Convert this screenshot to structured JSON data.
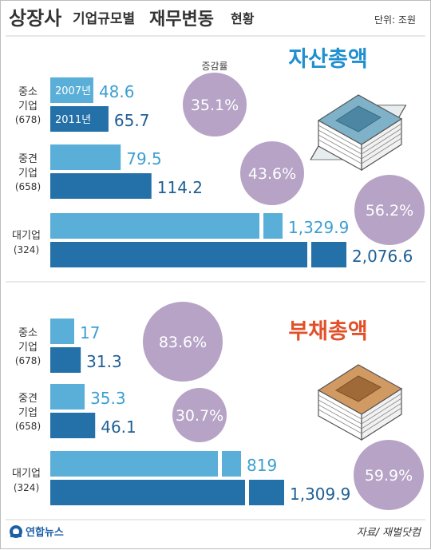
{
  "header": {
    "title_main": "상장사",
    "title_mid": "기업규모별",
    "title_end": "재무변동",
    "title_tail": "현황",
    "unit": "단위: 조원"
  },
  "legend": {
    "year1": "2007년",
    "year2": "2011년"
  },
  "growth_label": "증감률",
  "footer": {
    "logo": "연합뉴스",
    "source": "자료/ 재벌닷컴"
  },
  "colors": {
    "bar_2007": "#5aafd8",
    "bar_2011": "#2470a8",
    "val_2007": "#3d9fd2",
    "val_2011": "#1f5f95",
    "bubble": "#b6a3c6",
    "assets_title": "#1f8fd0",
    "liab_title": "#e2502a",
    "label": "#333333"
  },
  "chart_data": [
    {
      "type": "bar",
      "title": "자산총액",
      "categories": [
        {
          "line1": "중소",
          "line2": "기업",
          "line3": "(678)"
        },
        {
          "line1": "중견",
          "line2": "기업",
          "line3": "(658)"
        },
        {
          "line1": "대기업",
          "line2": "",
          "line3": "(324)"
        }
      ],
      "series": [
        {
          "name": "2007년",
          "values": [
            48.6,
            79.5,
            1329.9
          ],
          "labels": [
            "48.6",
            "79.5",
            "1,329.9"
          ]
        },
        {
          "name": "2011년",
          "values": [
            65.7,
            114.2,
            2076.6
          ],
          "labels": [
            "65.7",
            "114.2",
            "2,076.6"
          ]
        }
      ],
      "growth_rate": [
        "35.1%",
        "43.6%",
        "56.2%"
      ],
      "growth_values": [
        35.1,
        43.6,
        56.2
      ],
      "axis_break": true
    },
    {
      "type": "bar",
      "title": "부채총액",
      "categories": [
        {
          "line1": "중소",
          "line2": "기업",
          "line3": "(678)"
        },
        {
          "line1": "중견",
          "line2": "기업",
          "line3": "(658)"
        },
        {
          "line1": "대기업",
          "line2": "",
          "line3": "(324)"
        }
      ],
      "series": [
        {
          "name": "2007년",
          "values": [
            17,
            35.3,
            819
          ],
          "labels": [
            "17",
            "35.3",
            "819"
          ]
        },
        {
          "name": "2011년",
          "values": [
            31.3,
            46.1,
            1309.9
          ],
          "labels": [
            "31.3",
            "46.1",
            "1,309.9"
          ]
        }
      ],
      "growth_rate": [
        "83.6%",
        "30.7%",
        "59.9%"
      ],
      "growth_values": [
        83.6,
        30.7,
        59.9
      ],
      "axis_break": true
    }
  ]
}
